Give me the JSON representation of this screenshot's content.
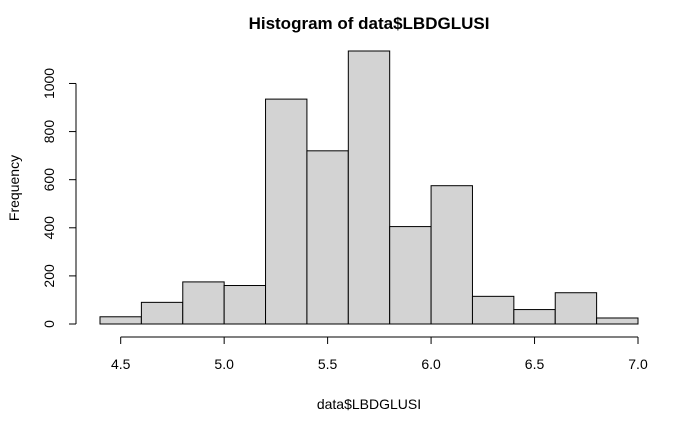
{
  "chart_data": {
    "type": "bar",
    "title": "Histogram of data$LBDGLUSI",
    "xlabel": "data$LBDGLUSI",
    "ylabel": "Frequency",
    "bin_edges": [
      4.4,
      4.6,
      4.8,
      5.0,
      5.2,
      5.4,
      5.6,
      5.8,
      6.0,
      6.2,
      6.4,
      6.6,
      6.8,
      7.0
    ],
    "values": [
      30,
      90,
      175,
      160,
      935,
      720,
      1135,
      405,
      575,
      115,
      60,
      130,
      25
    ],
    "xlim": [
      4.4,
      7.0
    ],
    "ylim": [
      0,
      1135
    ],
    "xticks": [
      4.5,
      5.0,
      5.5,
      6.0,
      6.5,
      7.0
    ],
    "xtick_labels": [
      "4.5",
      "5.0",
      "5.5",
      "6.0",
      "6.5",
      "7.0"
    ],
    "yticks": [
      0,
      200,
      400,
      600,
      800,
      1000
    ],
    "ytick_labels": [
      "0",
      "200",
      "400",
      "600",
      "800",
      "1000"
    ],
    "bar_color": "#d3d3d3",
    "edge_color": "#000000",
    "grid": false
  }
}
